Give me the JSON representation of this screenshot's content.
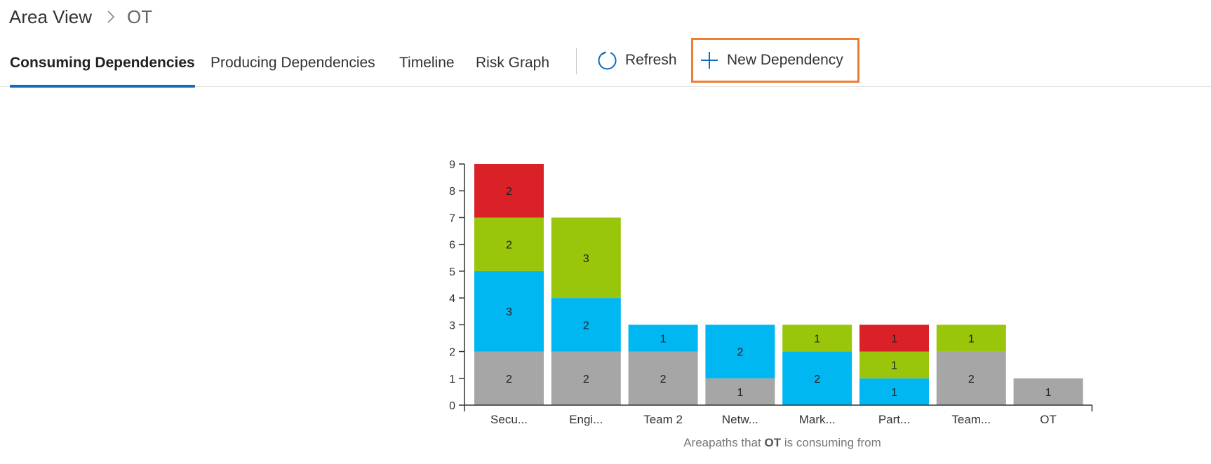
{
  "breadcrumb": {
    "root": "Area View",
    "current": "OT"
  },
  "tabs": [
    {
      "label": "Consuming Dependencies",
      "active": true
    },
    {
      "label": "Producing Dependencies",
      "active": false
    },
    {
      "label": "Timeline",
      "active": false
    },
    {
      "label": "Risk Graph",
      "active": false
    }
  ],
  "actions": {
    "refresh": {
      "label": "Refresh",
      "icon": "refresh-icon"
    },
    "new_dependency": {
      "label": "New Dependency",
      "icon": "plus-icon"
    }
  },
  "colors": {
    "accent": "#0f6cbd",
    "highlight": "#ed7d31",
    "gray": "#a6a6a6",
    "blue": "#00b7f1",
    "green": "#99c60b",
    "red": "#da2128"
  },
  "chart_data": {
    "type": "bar",
    "stacked": true,
    "categories": [
      "Secu...",
      "Engi...",
      "Team 2",
      "Netw...",
      "Mark...",
      "Part...",
      "Team...",
      "OT"
    ],
    "series": [
      {
        "color": "#a6a6a6",
        "values": [
          2,
          2,
          2,
          1,
          0,
          0,
          2,
          1
        ]
      },
      {
        "color": "#00b7f1",
        "values": [
          3,
          2,
          1,
          2,
          2,
          1,
          0,
          0
        ]
      },
      {
        "color": "#99c60b",
        "values": [
          2,
          3,
          0,
          0,
          1,
          1,
          1,
          0
        ]
      },
      {
        "color": "#da2128",
        "values": [
          2,
          0,
          0,
          0,
          0,
          1,
          0,
          0
        ]
      }
    ],
    "yticks": [
      0,
      1,
      2,
      3,
      4,
      5,
      6,
      7,
      8,
      9
    ],
    "ylim": [
      0,
      9
    ],
    "xlabel_prefix": "Areapaths that",
    "xlabel_subject": "OT",
    "xlabel_suffix": "is consuming from",
    "grid": false,
    "legend": "none"
  }
}
